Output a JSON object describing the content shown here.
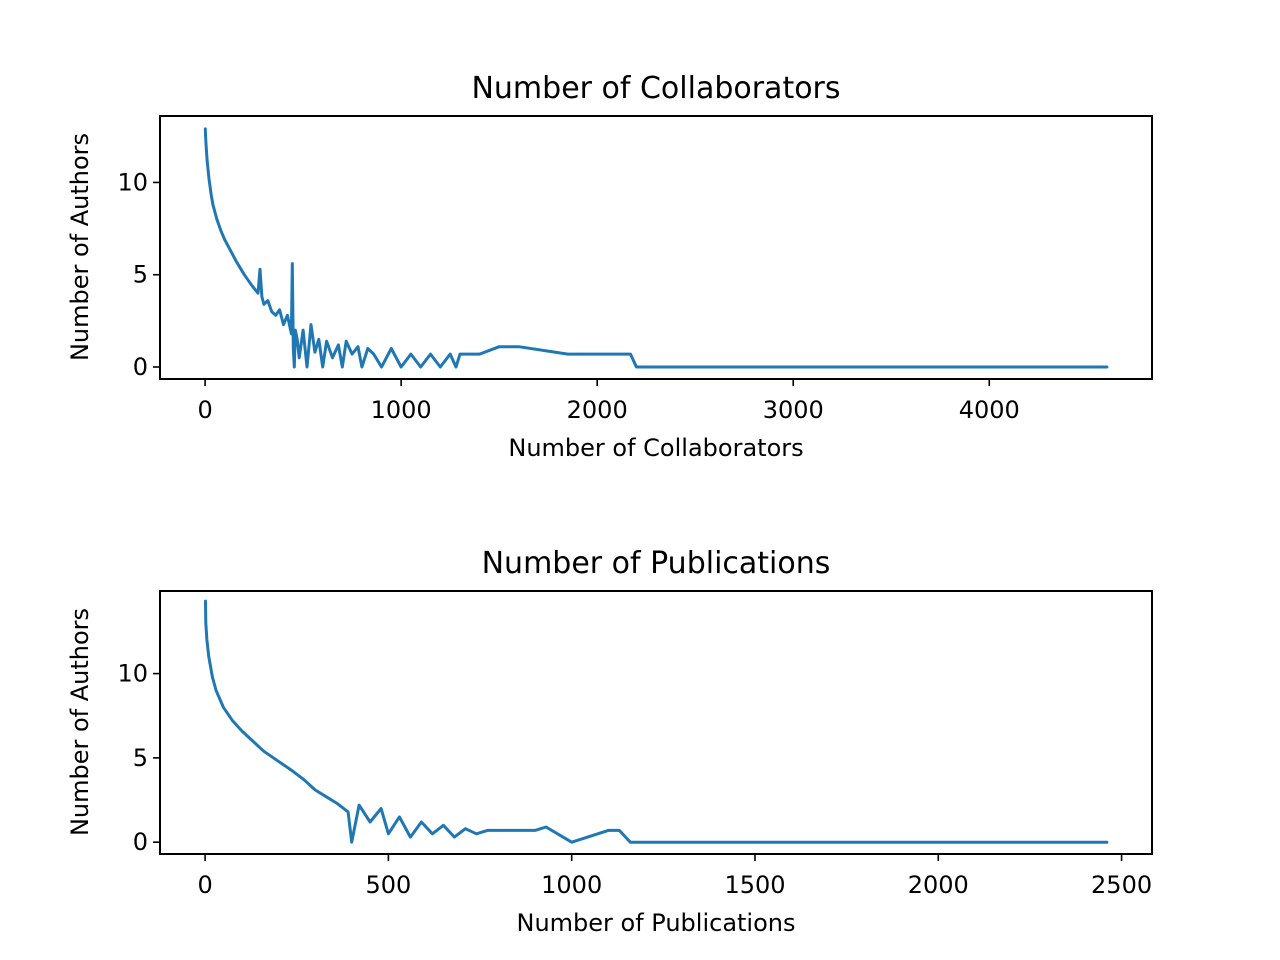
{
  "chart_data": [
    {
      "type": "line",
      "title": "Number of Collaborators",
      "xlabel": "Number of Collaborators",
      "ylabel": "Number of Authors",
      "xlim": [
        -230,
        4830
      ],
      "ylim": [
        -0.65,
        13.6
      ],
      "xticks": [
        0,
        1000,
        2000,
        3000,
        4000
      ],
      "yticks": [
        0,
        5,
        10
      ],
      "grid": false,
      "color": "#1f77b4",
      "series": [
        {
          "x": [
            1,
            2,
            5,
            10,
            20,
            30,
            40,
            60,
            80,
            100,
            130,
            160,
            200,
            240,
            270,
            280,
            290,
            300,
            320,
            340,
            360,
            380,
            400,
            420,
            440,
            445,
            450,
            455,
            460,
            470,
            480,
            500,
            520,
            540,
            560,
            580,
            600,
            620,
            650,
            680,
            700,
            720,
            750,
            780,
            800,
            830,
            860,
            900,
            950,
            1000,
            1050,
            1100,
            1150,
            1200,
            1250,
            1280,
            1300,
            1400,
            1500,
            1600,
            1850,
            1950,
            2170,
            2200,
            4600
          ],
          "y": [
            12.9,
            12.6,
            12.0,
            11.2,
            10.2,
            9.4,
            8.8,
            8.0,
            7.4,
            6.9,
            6.3,
            5.7,
            5.0,
            4.4,
            4.0,
            5.3,
            3.8,
            3.4,
            3.6,
            3.0,
            2.8,
            3.1,
            2.3,
            2.8,
            1.8,
            5.6,
            1.0,
            0.0,
            2.0,
            1.5,
            0.5,
            2.0,
            0.0,
            2.3,
            0.8,
            1.5,
            0.0,
            1.4,
            0.5,
            1.2,
            0.0,
            1.4,
            0.7,
            1.1,
            0.0,
            1.0,
            0.7,
            0.0,
            1.0,
            0.0,
            0.7,
            0.0,
            0.7,
            0.0,
            0.7,
            0.0,
            0.7,
            0.7,
            1.1,
            1.1,
            0.7,
            0.7,
            0.7,
            0.0,
            0.0
          ]
        }
      ]
    },
    {
      "type": "line",
      "title": "Number of Publications",
      "xlabel": "Number of Publications",
      "ylabel": "Number of Authors",
      "xlim": [
        -123,
        2583
      ],
      "ylim": [
        -0.7,
        14.9
      ],
      "xticks": [
        0,
        500,
        1000,
        1500,
        2000,
        2500
      ],
      "yticks": [
        0,
        5,
        10
      ],
      "grid": false,
      "color": "#1f77b4",
      "series": [
        {
          "x": [
            1,
            2,
            5,
            10,
            20,
            30,
            50,
            75,
            100,
            130,
            160,
            200,
            240,
            270,
            300,
            330,
            360,
            390,
            400,
            420,
            450,
            480,
            500,
            530,
            560,
            590,
            620,
            650,
            680,
            710,
            740,
            770,
            800,
            870,
            900,
            930,
            1000,
            1100,
            1130,
            1160,
            2460
          ],
          "y": [
            14.3,
            13.0,
            12.0,
            11.0,
            9.8,
            9.0,
            8.0,
            7.2,
            6.6,
            6.0,
            5.4,
            4.8,
            4.2,
            3.7,
            3.1,
            2.7,
            2.3,
            1.8,
            0.0,
            2.2,
            1.2,
            2.0,
            0.5,
            1.5,
            0.3,
            1.2,
            0.5,
            1.0,
            0.3,
            0.8,
            0.5,
            0.7,
            0.7,
            0.7,
            0.7,
            0.9,
            0.0,
            0.7,
            0.7,
            0.0,
            0.0
          ]
        }
      ]
    }
  ]
}
